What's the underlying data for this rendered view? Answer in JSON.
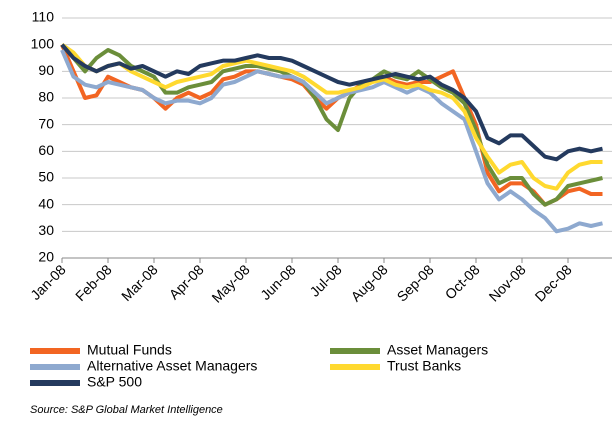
{
  "chart_data": {
    "type": "line",
    "categories": [
      "Jan-08",
      null,
      null,
      null,
      "Feb-08",
      null,
      null,
      null,
      "Mar-08",
      null,
      null,
      null,
      "Apr-08",
      null,
      null,
      null,
      "May-08",
      null,
      null,
      null,
      "Jun-08",
      null,
      null,
      null,
      "Jul-08",
      null,
      null,
      null,
      "Aug-08",
      null,
      null,
      null,
      "Sep-08",
      null,
      null,
      null,
      "Oct-08",
      null,
      null,
      null,
      "Nov-08",
      null,
      null,
      null,
      "Dec-08",
      null,
      null,
      null
    ],
    "series": [
      {
        "name": "Mutual Funds",
        "color": "#f26522",
        "values": [
          100,
          90,
          80,
          81,
          88,
          86,
          84,
          83,
          80,
          76,
          80,
          82,
          80,
          82,
          87,
          88,
          90,
          90,
          89,
          88,
          87,
          85,
          80,
          76,
          80,
          82,
          85,
          87,
          88,
          86,
          85,
          86,
          86,
          88,
          90,
          80,
          70,
          52,
          45,
          48,
          48,
          45,
          40,
          42,
          45,
          46,
          44,
          44
        ]
      },
      {
        "name": "Asset Managers",
        "color": "#6b8e3a",
        "values": [
          100,
          95,
          90,
          95,
          98,
          96,
          92,
          90,
          88,
          82,
          82,
          84,
          85,
          86,
          90,
          91,
          92,
          92,
          91,
          90,
          88,
          86,
          80,
          72,
          68,
          80,
          85,
          87,
          90,
          88,
          87,
          90,
          87,
          84,
          82,
          78,
          68,
          55,
          48,
          50,
          50,
          44,
          40,
          42,
          47,
          48,
          49,
          50
        ]
      },
      {
        "name": "Alternative Asset Managers",
        "color": "#8ea9cf",
        "values": [
          98,
          88,
          85,
          84,
          86,
          85,
          84,
          83,
          80,
          78,
          79,
          79,
          78,
          80,
          85,
          86,
          88,
          90,
          89,
          88,
          88,
          86,
          82,
          78,
          80,
          82,
          83,
          84,
          86,
          84,
          82,
          84,
          82,
          78,
          75,
          72,
          60,
          48,
          42,
          45,
          42,
          38,
          35,
          30,
          31,
          33,
          32,
          33
        ]
      },
      {
        "name": "Trust Banks",
        "color": "#ffd92f",
        "values": [
          100,
          97,
          92,
          90,
          92,
          93,
          90,
          88,
          86,
          84,
          86,
          87,
          88,
          89,
          92,
          93,
          94,
          93,
          92,
          91,
          90,
          88,
          85,
          82,
          82,
          83,
          84,
          86,
          87,
          85,
          84,
          85,
          83,
          82,
          80,
          75,
          65,
          58,
          52,
          55,
          56,
          50,
          47,
          46,
          52,
          55,
          56,
          56
        ]
      },
      {
        "name": "S&P 500",
        "color": "#243a5e",
        "values": [
          100,
          95,
          92,
          90,
          92,
          93,
          91,
          92,
          90,
          88,
          90,
          89,
          92,
          93,
          94,
          94,
          95,
          96,
          95,
          95,
          94,
          92,
          90,
          88,
          86,
          85,
          86,
          87,
          88,
          89,
          88,
          87,
          88,
          85,
          83,
          80,
          75,
          65,
          63,
          66,
          66,
          62,
          58,
          57,
          60,
          61,
          60,
          61
        ]
      }
    ],
    "ylim": [
      20,
      110
    ],
    "yticks": [
      20,
      30,
      40,
      50,
      60,
      70,
      80,
      90,
      100,
      110
    ],
    "grid": true,
    "source": "Source: S&P Global Market Intelligence"
  }
}
